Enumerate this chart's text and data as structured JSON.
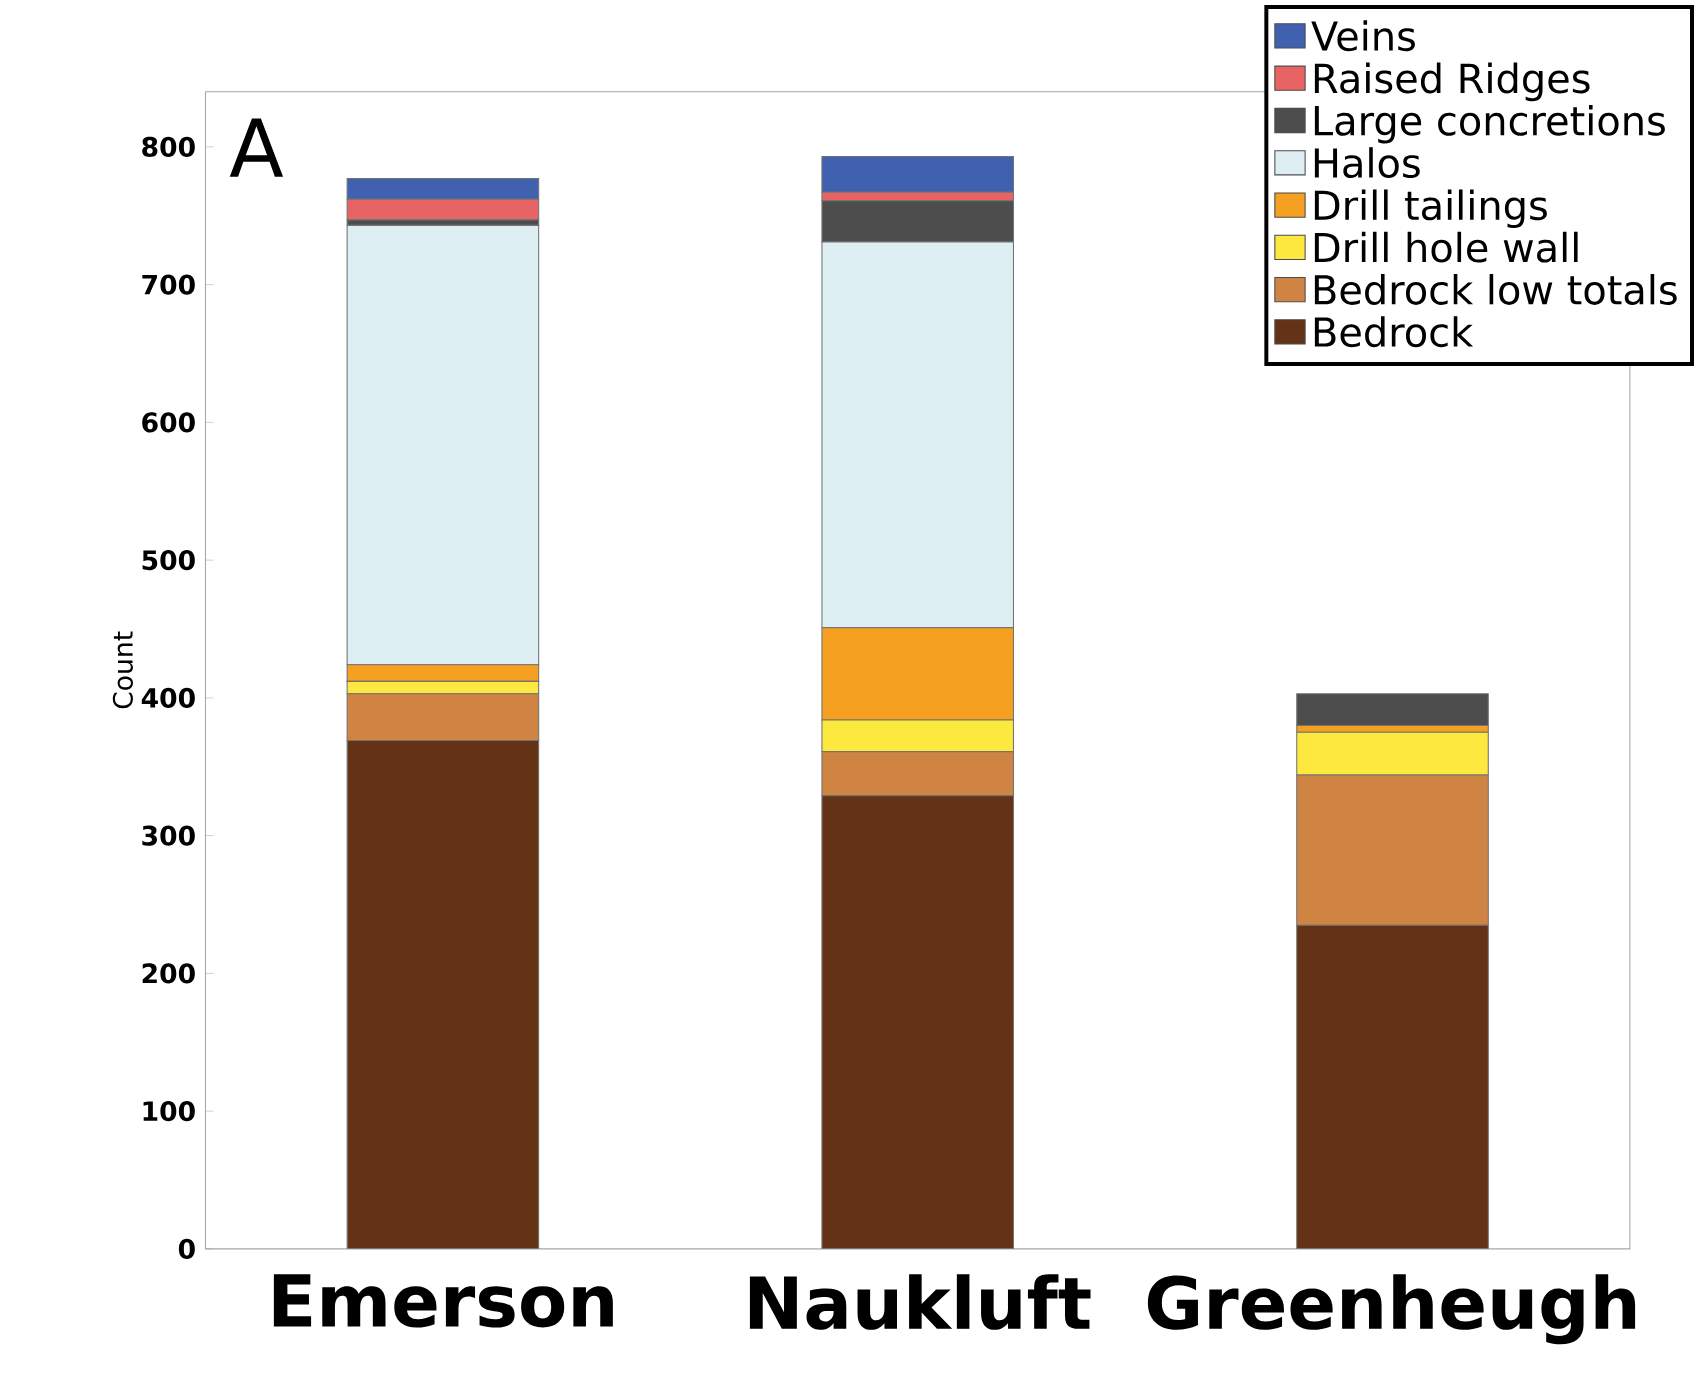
{
  "chart_data": {
    "type": "bar",
    "stacked": true,
    "ylabel": "Count",
    "categories": [
      "Emerson",
      "Naukluft",
      "Greenheugh"
    ],
    "series": [
      {
        "name": "Bedrock",
        "color": "#643214",
        "values": [
          369,
          329,
          235
        ]
      },
      {
        "name": "Bedrock low totals",
        "color": "#d08444",
        "values": [
          34,
          32,
          109
        ]
      },
      {
        "name": "Drill hole wall",
        "color": "#fde840",
        "values": [
          9,
          23,
          31
        ]
      },
      {
        "name": "Drill tailings",
        "color": "#f5a020",
        "values": [
          12,
          67,
          5
        ]
      },
      {
        "name": "Halos",
        "color": "#ddeff3",
        "values": [
          319,
          280,
          0
        ]
      },
      {
        "name": "Large concretions",
        "color": "#4d4d4d",
        "values": [
          4,
          30,
          23
        ]
      },
      {
        "name": "Raised Ridges",
        "color": "#e86464",
        "values": [
          15,
          6,
          0
        ]
      },
      {
        "name": "Veins",
        "color": "#4060b0",
        "values": [
          15,
          26,
          0
        ]
      }
    ],
    "ylim": [
      0,
      840
    ],
    "yticks": [
      0,
      100,
      200,
      300,
      400,
      500,
      600,
      700,
      800
    ],
    "grid": false,
    "legend": "top right",
    "annotations": [
      "A"
    ]
  }
}
